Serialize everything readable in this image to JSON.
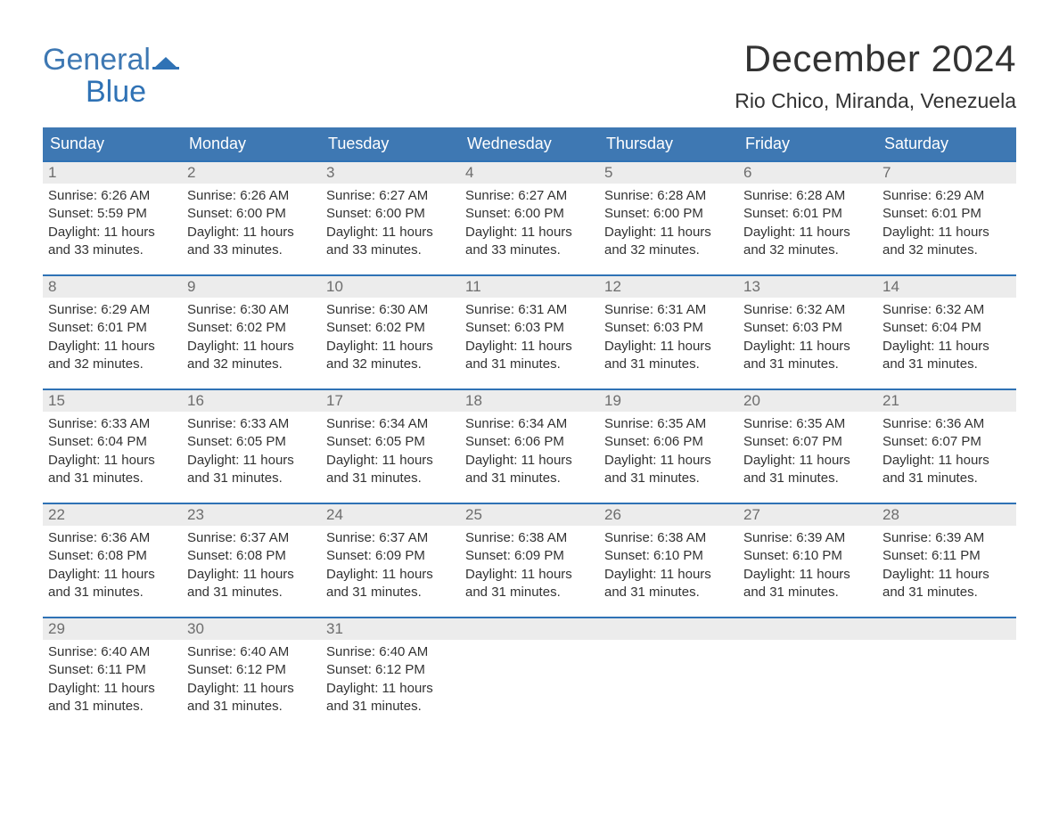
{
  "logo": {
    "general": "General",
    "blue": "Blue",
    "general_color": "#555d66",
    "blue_color": "#2f72b5",
    "flag_color": "#2f72b5"
  },
  "title": "December 2024",
  "subtitle": "Rio Chico, Miranda, Venezuela",
  "title_fontsize": 42,
  "subtitle_fontsize": 23,
  "header_bg": "#3e78b3",
  "header_fg": "#ffffff",
  "row_border_color": "#2f72b5",
  "daynum_bg": "#ececec",
  "daynum_color": "#6d6d6d",
  "body_color": "#333333",
  "daybody_fontsize": 15,
  "columns": [
    "Sunday",
    "Monday",
    "Tuesday",
    "Wednesday",
    "Thursday",
    "Friday",
    "Saturday"
  ],
  "weeks": [
    [
      {
        "n": "1",
        "sunrise": "Sunrise: 6:26 AM",
        "sunset": "Sunset: 5:59 PM",
        "daylight": "Daylight: 11 hours and 33 minutes."
      },
      {
        "n": "2",
        "sunrise": "Sunrise: 6:26 AM",
        "sunset": "Sunset: 6:00 PM",
        "daylight": "Daylight: 11 hours and 33 minutes."
      },
      {
        "n": "3",
        "sunrise": "Sunrise: 6:27 AM",
        "sunset": "Sunset: 6:00 PM",
        "daylight": "Daylight: 11 hours and 33 minutes."
      },
      {
        "n": "4",
        "sunrise": "Sunrise: 6:27 AM",
        "sunset": "Sunset: 6:00 PM",
        "daylight": "Daylight: 11 hours and 33 minutes."
      },
      {
        "n": "5",
        "sunrise": "Sunrise: 6:28 AM",
        "sunset": "Sunset: 6:00 PM",
        "daylight": "Daylight: 11 hours and 32 minutes."
      },
      {
        "n": "6",
        "sunrise": "Sunrise: 6:28 AM",
        "sunset": "Sunset: 6:01 PM",
        "daylight": "Daylight: 11 hours and 32 minutes."
      },
      {
        "n": "7",
        "sunrise": "Sunrise: 6:29 AM",
        "sunset": "Sunset: 6:01 PM",
        "daylight": "Daylight: 11 hours and 32 minutes."
      }
    ],
    [
      {
        "n": "8",
        "sunrise": "Sunrise: 6:29 AM",
        "sunset": "Sunset: 6:01 PM",
        "daylight": "Daylight: 11 hours and 32 minutes."
      },
      {
        "n": "9",
        "sunrise": "Sunrise: 6:30 AM",
        "sunset": "Sunset: 6:02 PM",
        "daylight": "Daylight: 11 hours and 32 minutes."
      },
      {
        "n": "10",
        "sunrise": "Sunrise: 6:30 AM",
        "sunset": "Sunset: 6:02 PM",
        "daylight": "Daylight: 11 hours and 32 minutes."
      },
      {
        "n": "11",
        "sunrise": "Sunrise: 6:31 AM",
        "sunset": "Sunset: 6:03 PM",
        "daylight": "Daylight: 11 hours and 31 minutes."
      },
      {
        "n": "12",
        "sunrise": "Sunrise: 6:31 AM",
        "sunset": "Sunset: 6:03 PM",
        "daylight": "Daylight: 11 hours and 31 minutes."
      },
      {
        "n": "13",
        "sunrise": "Sunrise: 6:32 AM",
        "sunset": "Sunset: 6:03 PM",
        "daylight": "Daylight: 11 hours and 31 minutes."
      },
      {
        "n": "14",
        "sunrise": "Sunrise: 6:32 AM",
        "sunset": "Sunset: 6:04 PM",
        "daylight": "Daylight: 11 hours and 31 minutes."
      }
    ],
    [
      {
        "n": "15",
        "sunrise": "Sunrise: 6:33 AM",
        "sunset": "Sunset: 6:04 PM",
        "daylight": "Daylight: 11 hours and 31 minutes."
      },
      {
        "n": "16",
        "sunrise": "Sunrise: 6:33 AM",
        "sunset": "Sunset: 6:05 PM",
        "daylight": "Daylight: 11 hours and 31 minutes."
      },
      {
        "n": "17",
        "sunrise": "Sunrise: 6:34 AM",
        "sunset": "Sunset: 6:05 PM",
        "daylight": "Daylight: 11 hours and 31 minutes."
      },
      {
        "n": "18",
        "sunrise": "Sunrise: 6:34 AM",
        "sunset": "Sunset: 6:06 PM",
        "daylight": "Daylight: 11 hours and 31 minutes."
      },
      {
        "n": "19",
        "sunrise": "Sunrise: 6:35 AM",
        "sunset": "Sunset: 6:06 PM",
        "daylight": "Daylight: 11 hours and 31 minutes."
      },
      {
        "n": "20",
        "sunrise": "Sunrise: 6:35 AM",
        "sunset": "Sunset: 6:07 PM",
        "daylight": "Daylight: 11 hours and 31 minutes."
      },
      {
        "n": "21",
        "sunrise": "Sunrise: 6:36 AM",
        "sunset": "Sunset: 6:07 PM",
        "daylight": "Daylight: 11 hours and 31 minutes."
      }
    ],
    [
      {
        "n": "22",
        "sunrise": "Sunrise: 6:36 AM",
        "sunset": "Sunset: 6:08 PM",
        "daylight": "Daylight: 11 hours and 31 minutes."
      },
      {
        "n": "23",
        "sunrise": "Sunrise: 6:37 AM",
        "sunset": "Sunset: 6:08 PM",
        "daylight": "Daylight: 11 hours and 31 minutes."
      },
      {
        "n": "24",
        "sunrise": "Sunrise: 6:37 AM",
        "sunset": "Sunset: 6:09 PM",
        "daylight": "Daylight: 11 hours and 31 minutes."
      },
      {
        "n": "25",
        "sunrise": "Sunrise: 6:38 AM",
        "sunset": "Sunset: 6:09 PM",
        "daylight": "Daylight: 11 hours and 31 minutes."
      },
      {
        "n": "26",
        "sunrise": "Sunrise: 6:38 AM",
        "sunset": "Sunset: 6:10 PM",
        "daylight": "Daylight: 11 hours and 31 minutes."
      },
      {
        "n": "27",
        "sunrise": "Sunrise: 6:39 AM",
        "sunset": "Sunset: 6:10 PM",
        "daylight": "Daylight: 11 hours and 31 minutes."
      },
      {
        "n": "28",
        "sunrise": "Sunrise: 6:39 AM",
        "sunset": "Sunset: 6:11 PM",
        "daylight": "Daylight: 11 hours and 31 minutes."
      }
    ],
    [
      {
        "n": "29",
        "sunrise": "Sunrise: 6:40 AM",
        "sunset": "Sunset: 6:11 PM",
        "daylight": "Daylight: 11 hours and 31 minutes."
      },
      {
        "n": "30",
        "sunrise": "Sunrise: 6:40 AM",
        "sunset": "Sunset: 6:12 PM",
        "daylight": "Daylight: 11 hours and 31 minutes."
      },
      {
        "n": "31",
        "sunrise": "Sunrise: 6:40 AM",
        "sunset": "Sunset: 6:12 PM",
        "daylight": "Daylight: 11 hours and 31 minutes."
      },
      null,
      null,
      null,
      null
    ]
  ]
}
